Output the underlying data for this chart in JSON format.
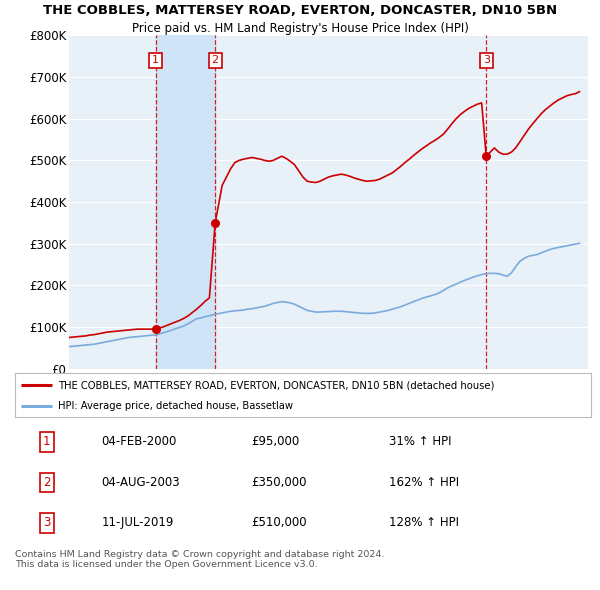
{
  "title": "THE COBBLES, MATTERSEY ROAD, EVERTON, DONCASTER, DN10 5BN",
  "subtitle": "Price paid vs. HM Land Registry's House Price Index (HPI)",
  "ylim": [
    0,
    800000
  ],
  "yticks": [
    0,
    100000,
    200000,
    300000,
    400000,
    500000,
    600000,
    700000,
    800000
  ],
  "ytick_labels": [
    "£0",
    "£100K",
    "£200K",
    "£300K",
    "£400K",
    "£500K",
    "£600K",
    "£700K",
    "£800K"
  ],
  "xlim_start": 1995.0,
  "xlim_end": 2025.5,
  "background_color": "#ffffff",
  "plot_bg_color": "#e8f0f8",
  "grid_color": "#ffffff",
  "highlight_color": "#d0e4f7",
  "sale_dates_num": [
    2000.09,
    2003.59,
    2019.52
  ],
  "sale_prices": [
    95000,
    350000,
    510000
  ],
  "sale_labels": [
    "1",
    "2",
    "3"
  ],
  "legend_red_label": "THE COBBLES, MATTERSEY ROAD, EVERTON, DONCASTER, DN10 5BN (detached house)",
  "legend_blue_label": "HPI: Average price, detached house, Bassetlaw",
  "table_data": [
    [
      "1",
      "04-FEB-2000",
      "£95,000",
      "31% ↑ HPI"
    ],
    [
      "2",
      "04-AUG-2003",
      "£350,000",
      "162% ↑ HPI"
    ],
    [
      "3",
      "11-JUL-2019",
      "£510,000",
      "128% ↑ HPI"
    ]
  ],
  "footer_text": "Contains HM Land Registry data © Crown copyright and database right 2024.\nThis data is licensed under the Open Government Licence v3.0.",
  "red_color": "#cc0000",
  "blue_color": "#7aabdc",
  "dashed_color": "#cc0000",
  "hpi_x": [
    1995.0,
    1995.25,
    1995.5,
    1995.75,
    1996.0,
    1996.25,
    1996.5,
    1996.75,
    1997.0,
    1997.25,
    1997.5,
    1997.75,
    1998.0,
    1998.25,
    1998.5,
    1998.75,
    1999.0,
    1999.25,
    1999.5,
    1999.75,
    2000.0,
    2000.25,
    2000.5,
    2000.75,
    2001.0,
    2001.25,
    2001.5,
    2001.75,
    2002.0,
    2002.25,
    2002.5,
    2002.75,
    2003.0,
    2003.25,
    2003.5,
    2003.75,
    2004.0,
    2004.25,
    2004.5,
    2004.75,
    2005.0,
    2005.25,
    2005.5,
    2005.75,
    2006.0,
    2006.25,
    2006.5,
    2006.75,
    2007.0,
    2007.25,
    2007.5,
    2007.75,
    2008.0,
    2008.25,
    2008.5,
    2008.75,
    2009.0,
    2009.25,
    2009.5,
    2009.75,
    2010.0,
    2010.25,
    2010.5,
    2010.75,
    2011.0,
    2011.25,
    2011.5,
    2011.75,
    2012.0,
    2012.25,
    2012.5,
    2012.75,
    2013.0,
    2013.25,
    2013.5,
    2013.75,
    2014.0,
    2014.25,
    2014.5,
    2014.75,
    2015.0,
    2015.25,
    2015.5,
    2015.75,
    2016.0,
    2016.25,
    2016.5,
    2016.75,
    2017.0,
    2017.25,
    2017.5,
    2017.75,
    2018.0,
    2018.25,
    2018.5,
    2018.75,
    2019.0,
    2019.25,
    2019.5,
    2019.75,
    2020.0,
    2020.25,
    2020.5,
    2020.75,
    2021.0,
    2021.25,
    2021.5,
    2021.75,
    2022.0,
    2022.25,
    2022.5,
    2022.75,
    2023.0,
    2023.25,
    2023.5,
    2023.75,
    2024.0,
    2024.25,
    2024.5,
    2024.75,
    2025.0
  ],
  "hpi_y": [
    53000,
    54000,
    55000,
    56000,
    57000,
    58000,
    59000,
    61000,
    63000,
    65000,
    67000,
    69000,
    71000,
    73000,
    75000,
    76000,
    77000,
    78000,
    79000,
    80000,
    81000,
    83000,
    86000,
    89000,
    92000,
    96000,
    99000,
    103000,
    108000,
    114000,
    120000,
    122000,
    125000,
    127000,
    130000,
    132000,
    134000,
    136000,
    138000,
    139000,
    140000,
    141000,
    143000,
    144000,
    146000,
    148000,
    150000,
    153000,
    157000,
    159000,
    161000,
    160000,
    158000,
    155000,
    150000,
    145000,
    140000,
    138000,
    136000,
    136000,
    137000,
    137000,
    138000,
    138000,
    138000,
    137000,
    136000,
    135000,
    134000,
    133000,
    133000,
    133000,
    134000,
    136000,
    138000,
    140000,
    143000,
    146000,
    149000,
    153000,
    157000,
    161000,
    165000,
    169000,
    172000,
    175000,
    178000,
    182000,
    188000,
    194000,
    199000,
    203000,
    208000,
    212000,
    216000,
    220000,
    223000,
    226000,
    228000,
    229000,
    229000,
    228000,
    225000,
    222000,
    230000,
    245000,
    258000,
    265000,
    270000,
    272000,
    274000,
    278000,
    282000,
    286000,
    289000,
    291000,
    293000,
    295000,
    297000,
    299000,
    301000
  ],
  "red_x": [
    1995.0,
    1995.25,
    1995.5,
    1995.75,
    1996.0,
    1996.25,
    1996.5,
    1996.75,
    1997.0,
    1997.25,
    1997.5,
    1997.75,
    1998.0,
    1998.25,
    1998.5,
    1998.75,
    1999.0,
    1999.25,
    1999.5,
    1999.75,
    2000.09,
    2000.25,
    2000.5,
    2000.75,
    2001.0,
    2001.25,
    2001.5,
    2001.75,
    2002.0,
    2002.25,
    2002.5,
    2002.75,
    2003.0,
    2003.25,
    2003.59,
    2004.0,
    2004.25,
    2004.5,
    2004.75,
    2005.0,
    2005.25,
    2005.5,
    2005.75,
    2006.0,
    2006.25,
    2006.5,
    2006.75,
    2007.0,
    2007.25,
    2007.5,
    2007.75,
    2008.0,
    2008.25,
    2008.5,
    2008.75,
    2009.0,
    2009.25,
    2009.5,
    2009.75,
    2010.0,
    2010.25,
    2010.5,
    2010.75,
    2011.0,
    2011.25,
    2011.5,
    2011.75,
    2012.0,
    2012.25,
    2012.5,
    2012.75,
    2013.0,
    2013.25,
    2013.5,
    2013.75,
    2014.0,
    2014.25,
    2014.5,
    2014.75,
    2015.0,
    2015.25,
    2015.5,
    2015.75,
    2016.0,
    2016.25,
    2016.5,
    2016.75,
    2017.0,
    2017.25,
    2017.5,
    2017.75,
    2018.0,
    2018.25,
    2018.5,
    2018.75,
    2019.0,
    2019.25,
    2019.52,
    2020.0,
    2020.25,
    2020.5,
    2020.75,
    2021.0,
    2021.25,
    2021.5,
    2021.75,
    2022.0,
    2022.25,
    2022.5,
    2022.75,
    2023.0,
    2023.25,
    2023.5,
    2023.75,
    2024.0,
    2024.25,
    2024.5,
    2024.75,
    2025.0
  ],
  "red_y": [
    75000,
    76000,
    77000,
    78000,
    79000,
    81000,
    82000,
    84000,
    86000,
    88000,
    89000,
    90000,
    91000,
    92000,
    93000,
    94000,
    95000,
    95000,
    95000,
    95000,
    95000,
    97000,
    100000,
    104000,
    108000,
    112000,
    116000,
    121000,
    127000,
    135000,
    143000,
    152000,
    162000,
    170000,
    350000,
    440000,
    460000,
    480000,
    495000,
    500000,
    503000,
    505000,
    507000,
    505000,
    503000,
    500000,
    498000,
    500000,
    505000,
    510000,
    505000,
    498000,
    490000,
    475000,
    460000,
    450000,
    448000,
    447000,
    450000,
    455000,
    460000,
    463000,
    465000,
    467000,
    465000,
    462000,
    458000,
    455000,
    452000,
    450000,
    451000,
    452000,
    455000,
    460000,
    465000,
    470000,
    478000,
    486000,
    495000,
    503000,
    512000,
    520000,
    528000,
    535000,
    542000,
    548000,
    555000,
    563000,
    575000,
    588000,
    600000,
    610000,
    618000,
    625000,
    630000,
    635000,
    638000,
    510000,
    530000,
    520000,
    515000,
    515000,
    520000,
    530000,
    545000,
    560000,
    575000,
    588000,
    600000,
    612000,
    622000,
    630000,
    638000,
    645000,
    650000,
    655000,
    658000,
    660000,
    665000
  ]
}
